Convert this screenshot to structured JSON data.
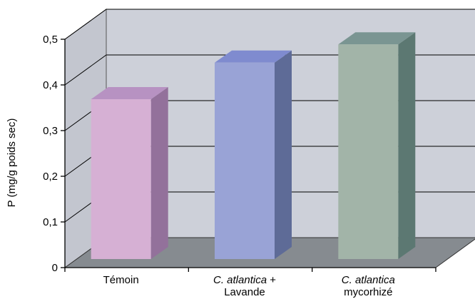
{
  "chart_data": {
    "type": "bar",
    "style": "3d-column",
    "categories": [
      {
        "lines": [
          {
            "parts": [
              {
                "text": "Témoin",
                "italic": false
              }
            ]
          }
        ]
      },
      {
        "lines": [
          {
            "parts": [
              {
                "text": "C. atlantica",
                "italic": true
              },
              {
                "text": " +",
                "italic": false
              }
            ]
          },
          {
            "parts": [
              {
                "text": "Lavande",
                "italic": false
              }
            ]
          }
        ]
      },
      {
        "lines": [
          {
            "parts": [
              {
                "text": "C. atlantica",
                "italic": true
              }
            ]
          },
          {
            "parts": [
              {
                "text": "mycorhizé",
                "italic": false
              }
            ]
          }
        ]
      }
    ],
    "values": [
      0.35,
      0.43,
      0.47
    ],
    "ylabel": "P (mg/g poids sec)",
    "ylim": [
      0,
      0.5
    ],
    "yticks": [
      {
        "value": 0,
        "label": "0"
      },
      {
        "value": 0.1,
        "label": "0,1"
      },
      {
        "value": 0.2,
        "label": "0,2"
      },
      {
        "value": 0.3,
        "label": "0,3"
      },
      {
        "value": 0.4,
        "label": "0,4"
      },
      {
        "value": 0.5,
        "label": "0,5"
      }
    ],
    "grid": true,
    "legend": "none"
  },
  "colors": {
    "bars": [
      {
        "front": "#d6b0d4",
        "side": "#93719b",
        "top": "#b792c2"
      },
      {
        "front": "#99a3d6",
        "side": "#5e6b97",
        "top": "#7f8bcf"
      },
      {
        "front": "#a2b4a8",
        "side": "#5c7872",
        "top": "#7a9592"
      }
    ],
    "back_wall": "#cdd0d9",
    "side_wall": "#c3c6cf",
    "floor": "#868b90",
    "gridline": "#000000",
    "axis": "#000000"
  }
}
